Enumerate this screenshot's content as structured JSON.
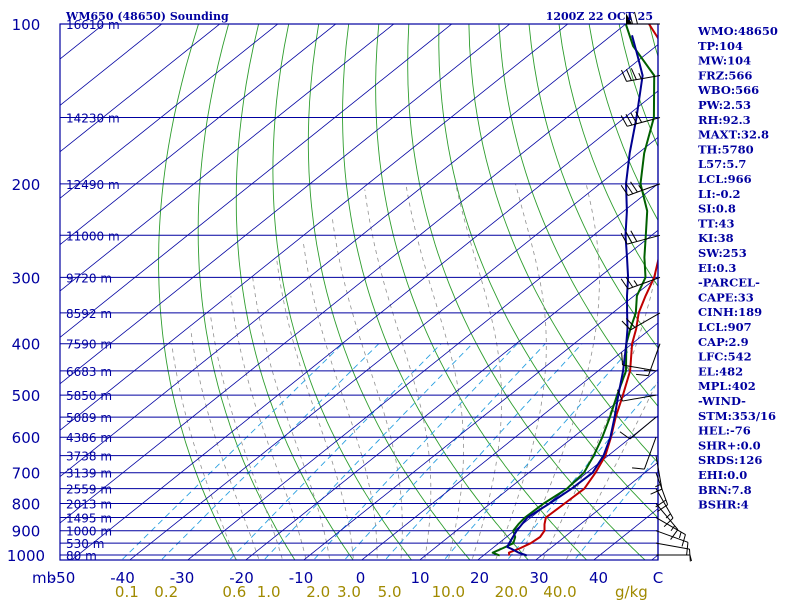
{
  "chart_data": {
    "type": "line",
    "title": "WM650 (48650) Sounding",
    "time": "1200Z 22 OCT 25",
    "pressure_unit_label": "mb",
    "mixing_ratio_unit_label": "g/kg",
    "pressure_levels": [
      1000,
      900,
      800,
      700,
      600,
      500,
      400,
      300,
      200,
      100
    ],
    "temperature_ticks": [
      "-50",
      "-40",
      "-30",
      "-20",
      "-10",
      "0",
      "10",
      "20",
      "30",
      "40",
      "C"
    ],
    "mixing_ratio_ticks": [
      "0.1",
      "0.2",
      "0.6",
      "1.0",
      "2.0",
      "3.0",
      "5.0",
      "10.0",
      "20.0",
      "40.0"
    ],
    "heights": [
      {
        "p": 100,
        "label": "16610 m"
      },
      {
        "p": 150,
        "label": "14230 m"
      },
      {
        "p": 200,
        "label": "12490 m"
      },
      {
        "p": 250,
        "label": "11000 m"
      },
      {
        "p": 300,
        "label": "9720 m"
      },
      {
        "p": 350,
        "label": "8592 m"
      },
      {
        "p": 400,
        "label": "7590 m"
      },
      {
        "p": 450,
        "label": "6683 m"
      },
      {
        "p": 500,
        "label": "5850 m"
      },
      {
        "p": 550,
        "label": "5089 m"
      },
      {
        "p": 600,
        "label": "4386 m"
      },
      {
        "p": 650,
        "label": "3738 m"
      },
      {
        "p": 700,
        "label": "3139 m"
      },
      {
        "p": 750,
        "label": "2559 m"
      },
      {
        "p": 800,
        "label": "2013 m"
      },
      {
        "p": 850,
        "label": "1495 m"
      },
      {
        "p": 900,
        "label": "1000 m"
      },
      {
        "p": 950,
        "label": "530 m"
      },
      {
        "p": 1000,
        "label": "80 m"
      }
    ],
    "series": [
      {
        "key": "temperature",
        "color": "#c00000",
        "points": [
          [
            1002,
            24.5
          ],
          [
            990,
            23.8
          ],
          [
            970,
            24.8
          ],
          [
            950,
            25.5
          ],
          [
            925,
            25.8
          ],
          [
            900,
            25.2
          ],
          [
            875,
            23.8
          ],
          [
            850,
            22.6
          ],
          [
            800,
            22.8
          ],
          [
            750,
            23.0
          ],
          [
            700,
            21.5
          ],
          [
            650,
            19.5
          ],
          [
            600,
            16.5
          ],
          [
            550,
            13.0
          ],
          [
            500,
            9.5
          ],
          [
            450,
            5.5
          ],
          [
            400,
            0.0
          ],
          [
            375,
            -2.5
          ],
          [
            350,
            -5.5
          ],
          [
            325,
            -8.0
          ],
          [
            300,
            -10.5
          ],
          [
            275,
            -14.0
          ],
          [
            250,
            -18.5
          ],
          [
            225,
            -23.5
          ],
          [
            200,
            -29.0
          ],
          [
            175,
            -34.5
          ],
          [
            150,
            -42.0
          ],
          [
            125,
            -50.5
          ],
          [
            115,
            -55.5
          ],
          [
            100,
            -66.0
          ]
        ]
      },
      {
        "key": "dewpoint",
        "color": "#006000",
        "points": [
          [
            1002,
            22.8
          ],
          [
            990,
            21.0
          ],
          [
            970,
            21.8
          ],
          [
            950,
            22.5
          ],
          [
            925,
            21.5
          ],
          [
            900,
            19.8
          ],
          [
            875,
            19.3
          ],
          [
            850,
            19.0
          ],
          [
            800,
            19.2
          ],
          [
            750,
            20.0
          ],
          [
            700,
            19.5
          ],
          [
            650,
            17.5
          ],
          [
            600,
            15.0
          ],
          [
            550,
            12.0
          ],
          [
            500,
            8.5
          ],
          [
            450,
            4.8
          ],
          [
            400,
            -1.0
          ],
          [
            375,
            -3.5
          ],
          [
            350,
            -6.0
          ],
          [
            325,
            -9.5
          ],
          [
            300,
            -12.0
          ],
          [
            275,
            -16.5
          ],
          [
            250,
            -21.0
          ],
          [
            225,
            -26.0
          ],
          [
            200,
            -33.0
          ],
          [
            175,
            -39.0
          ],
          [
            150,
            -45.0
          ],
          [
            125,
            -54.0
          ],
          [
            110,
            -64.0
          ],
          [
            100,
            -70.0
          ]
        ]
      },
      {
        "key": "parcel",
        "color": "#000090",
        "points": [
          [
            1002,
            27.5
          ],
          [
            990,
            25.5
          ],
          [
            975,
            23.6
          ],
          [
            966,
            22.3
          ],
          [
            950,
            21.8
          ],
          [
            900,
            20.4
          ],
          [
            850,
            19.4
          ],
          [
            800,
            20.2
          ],
          [
            750,
            20.8
          ],
          [
            700,
            21.0
          ],
          [
            650,
            19.2
          ],
          [
            600,
            16.4
          ],
          [
            550,
            12.8
          ],
          [
            500,
            8.7
          ],
          [
            450,
            4.3
          ],
          [
            400,
            -1.0
          ],
          [
            375,
            -4.0
          ],
          [
            350,
            -7.5
          ],
          [
            325,
            -11.2
          ],
          [
            300,
            -15.0
          ],
          [
            275,
            -19.5
          ],
          [
            250,
            -24.5
          ],
          [
            225,
            -29.5
          ],
          [
            200,
            -35.5
          ],
          [
            175,
            -41.5
          ],
          [
            150,
            -48.0
          ],
          [
            125,
            -56.0
          ],
          [
            115,
            -61.0
          ],
          [
            105,
            -66.5
          ]
        ]
      }
    ],
    "wind_barbs_left": [
      {
        "p": 1000,
        "dir": 90,
        "spd": 5
      },
      {
        "p": 950,
        "dir": 100,
        "spd": 10
      },
      {
        "p": 900,
        "dir": 110,
        "spd": 10
      },
      {
        "p": 850,
        "dir": 120,
        "spd": 15
      },
      {
        "p": 800,
        "dir": 140,
        "spd": 15
      },
      {
        "p": 750,
        "dir": 150,
        "spd": 15
      },
      {
        "p": 700,
        "dir": 160,
        "spd": 20
      },
      {
        "p": 650,
        "dir": 170,
        "spd": 15
      },
      {
        "p": 600,
        "dir": 200,
        "spd": 10
      },
      {
        "p": 550,
        "dir": 230,
        "spd": 10
      },
      {
        "p": 500,
        "dir": 260,
        "spd": 10
      },
      {
        "p": 450,
        "dir": 280,
        "spd": 10
      }
    ],
    "wind_barbs_right": [
      {
        "p": 400,
        "dir": 200,
        "spd": 15
      },
      {
        "p": 350,
        "dir": 240,
        "spd": 20
      },
      {
        "p": 300,
        "dir": 250,
        "spd": 25
      },
      {
        "p": 250,
        "dir": 255,
        "spd": 30
      },
      {
        "p": 200,
        "dir": 250,
        "spd": 35
      },
      {
        "p": 150,
        "dir": 255,
        "spd": 40
      },
      {
        "p": 125,
        "dir": 260,
        "spd": 35
      },
      {
        "p": 100,
        "dir": 270,
        "spd": 70
      }
    ],
    "indices": [
      "WMO:48650",
      "TP:104",
      "MW:104",
      "FRZ:566",
      "WBO:566",
      "PW:2.53",
      "RH:92.3",
      "MAXT:32.8",
      "TH:5780",
      "L57:5.7",
      "LCL:966",
      "LI:-0.2",
      "SI:0.8",
      "TT:43",
      "KI:38",
      "SW:253",
      "EI:0.3",
      "-PARCEL-",
      "CAPE:33",
      "CINH:189",
      "LCL:907",
      "CAP:2.9",
      "LFC:542",
      "EL:482",
      "MPL:402",
      "-WIND-",
      "STM:353/16",
      "HEL:-76",
      "SHR+:0.0",
      "SRDS:126",
      "EHI:0.0",
      "BRN:7.8",
      "BSHR:4"
    ]
  }
}
